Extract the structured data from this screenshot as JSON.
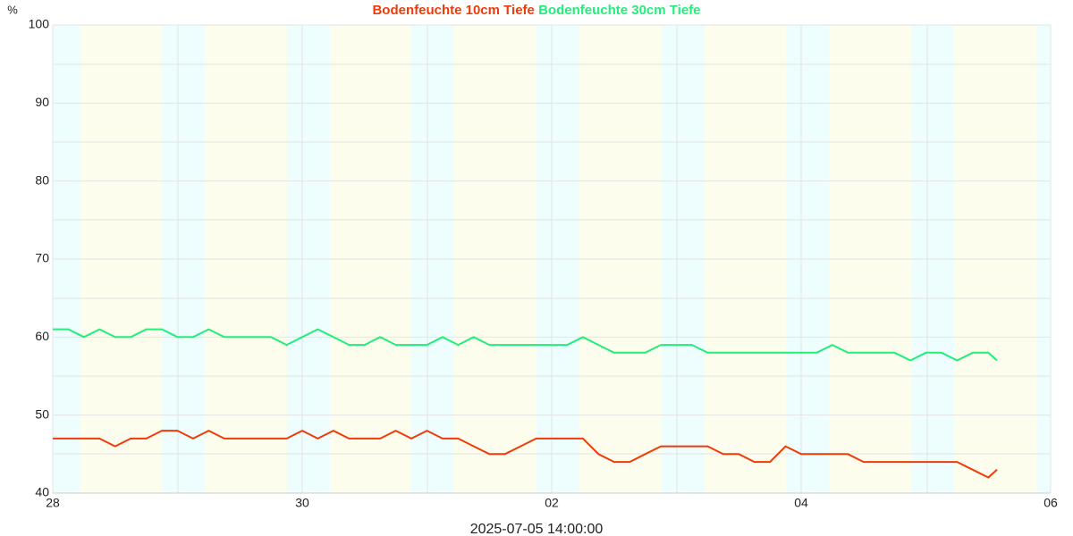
{
  "chart_data": {
    "type": "line",
    "y_label": "%",
    "x_label": "2025-07-05 14:00:00",
    "x": [
      0,
      0.125,
      0.25,
      0.375,
      0.5,
      0.625,
      0.75,
      0.875,
      1,
      1.125,
      1.25,
      1.375,
      1.5,
      1.625,
      1.75,
      1.875,
      2,
      2.125,
      2.25,
      2.375,
      2.5,
      2.625,
      2.75,
      2.875,
      3,
      3.125,
      3.25,
      3.375,
      3.5,
      3.625,
      3.75,
      3.875,
      4,
      4.125,
      4.25,
      4.375,
      4.5,
      4.625,
      4.75,
      4.875,
      5,
      5.125,
      5.25,
      5.375,
      5.5,
      5.625,
      5.75,
      5.875,
      6,
      6.125,
      6.25,
      6.375,
      6.5,
      6.625,
      6.75,
      6.875,
      7,
      7.125,
      7.25,
      7.375,
      7.5,
      7.57
    ],
    "series": [
      {
        "name": "Bodenfeuchte 10cm Tiefe",
        "color": "#ef3b09",
        "values": [
          47,
          47,
          47,
          47,
          46,
          47,
          47,
          48,
          48,
          47,
          48,
          47,
          47,
          47,
          47,
          47,
          48,
          47,
          48,
          47,
          47,
          47,
          48,
          47,
          48,
          47,
          47,
          46,
          45,
          45,
          46,
          47,
          47,
          47,
          47,
          45,
          44,
          44,
          45,
          46,
          46,
          46,
          46,
          45,
          45,
          44,
          44,
          46,
          45,
          45,
          45,
          45,
          44,
          44,
          44,
          44,
          44,
          44,
          44,
          43,
          42,
          43
        ]
      },
      {
        "name": "Bodenfeuchte 30cm Tiefe",
        "color": "#22ee7a",
        "values": [
          61,
          61,
          60,
          61,
          60,
          60,
          61,
          61,
          60,
          60,
          61,
          60,
          60,
          60,
          60,
          59,
          60,
          61,
          60,
          59,
          59,
          60,
          59,
          59,
          59,
          60,
          59,
          60,
          59,
          59,
          59,
          59,
          59,
          59,
          60,
          59,
          58,
          58,
          58,
          59,
          59,
          59,
          58,
          58,
          58,
          58,
          58,
          58,
          58,
          58,
          59,
          58,
          58,
          58,
          58,
          57,
          58,
          58,
          57,
          58,
          58,
          57
        ]
      }
    ],
    "xlim": [
      0,
      8
    ],
    "xticks": [
      {
        "value": 0,
        "label": "28"
      },
      {
        "value": 2,
        "label": "30"
      },
      {
        "value": 4,
        "label": "02"
      },
      {
        "value": 6,
        "label": "04"
      },
      {
        "value": 8,
        "label": "06"
      }
    ],
    "ylim": [
      40,
      100
    ],
    "yticks": [
      40,
      50,
      60,
      70,
      80,
      90,
      100
    ],
    "grid": true
  }
}
